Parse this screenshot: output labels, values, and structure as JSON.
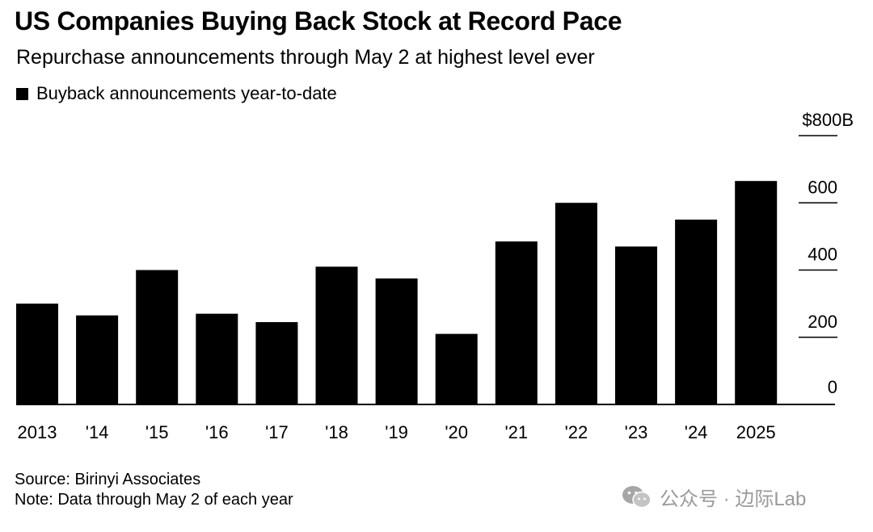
{
  "title": "US Companies Buying Back Stock at Record Pace",
  "subtitle": "Repurchase announcements through May 2 at highest level ever",
  "legend": {
    "label": "Buyback announcements year-to-date"
  },
  "footer": {
    "source": "Source: Birinyi Associates",
    "note": "Note: Data through May 2 of each year"
  },
  "watermark": {
    "text": "公众号 · 边际Lab",
    "icon": "wechat-icon"
  },
  "colors": {
    "bar": "#000000",
    "axis": "#000000",
    "text": "#000000",
    "watermark": "#9a9a9a"
  },
  "chart_data": {
    "type": "bar",
    "categories": [
      "2013",
      "'14",
      "'15",
      "'16",
      "'17",
      "'18",
      "'19",
      "'20",
      "'21",
      "'22",
      "'23",
      "'24",
      "2025"
    ],
    "series": [
      {
        "name": "Buyback announcements year-to-date",
        "values": [
          300,
          265,
          400,
          270,
          245,
          410,
          375,
          210,
          485,
          600,
          470,
          550,
          665
        ]
      }
    ],
    "ylim": [
      0,
      800
    ],
    "yticks": [
      0,
      200,
      400,
      600,
      800
    ],
    "ytick_labels": [
      "0",
      "200",
      "400",
      "600",
      "$800B"
    ],
    "yaxis_position": "right",
    "grid": false
  }
}
